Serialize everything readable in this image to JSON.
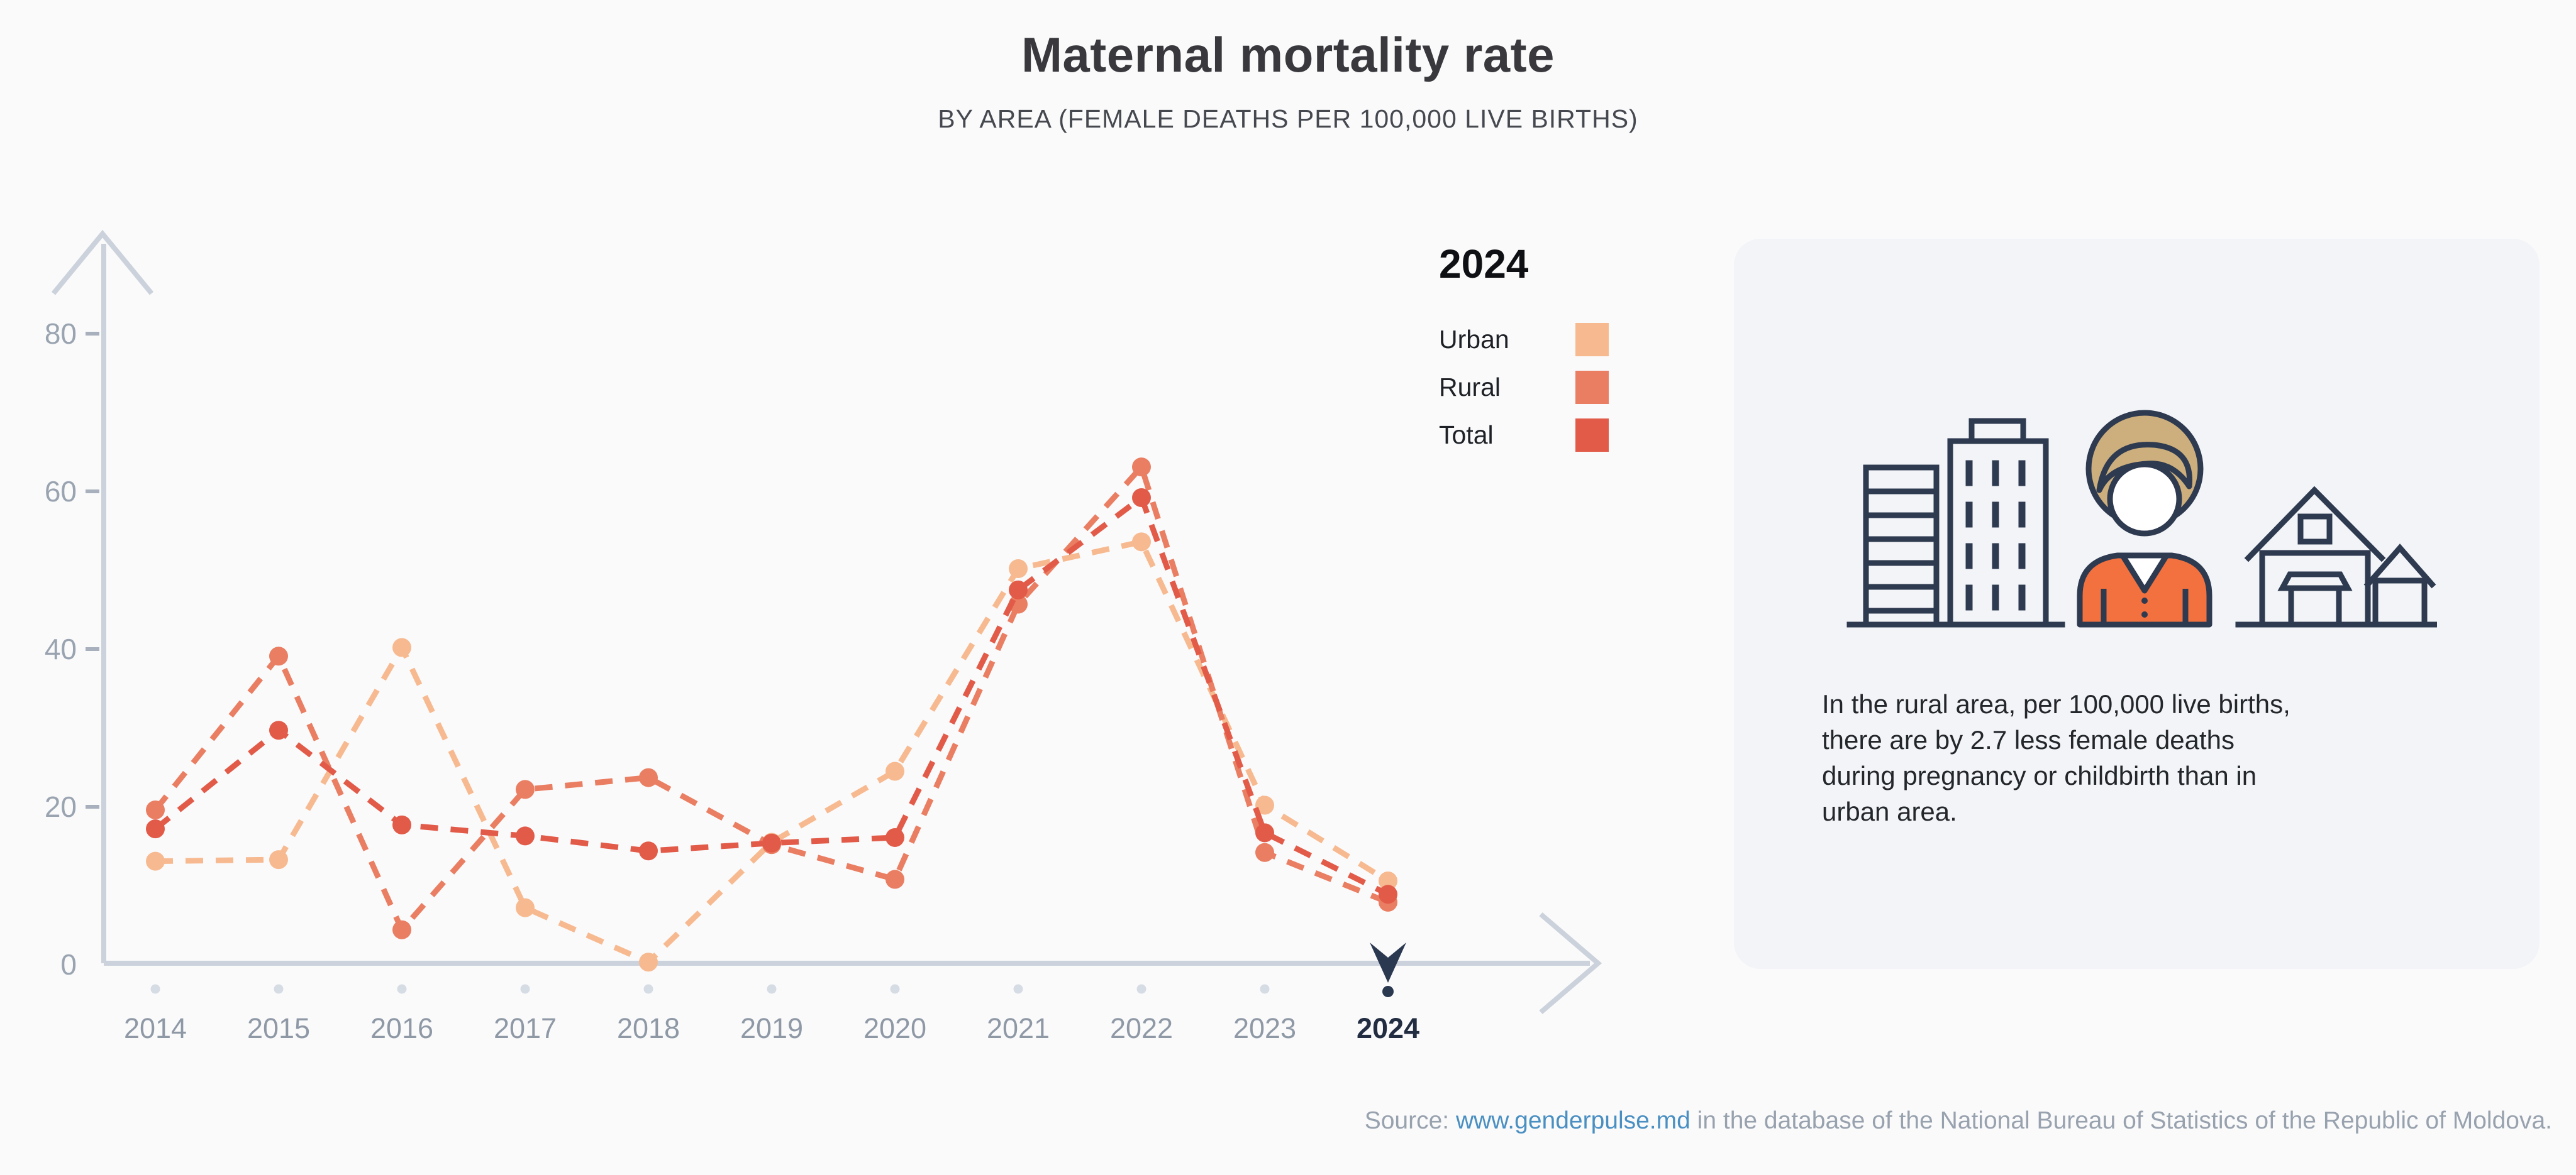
{
  "header": {
    "title": "Maternal mortality rate",
    "subtitle": "BY AREA (FEMALE DEATHS PER 100,000 LIVE BIRTHS)"
  },
  "legend": {
    "selected_year": "2024",
    "items": [
      {
        "label": "Urban",
        "color": "#f7ba90"
      },
      {
        "label": "Rural",
        "color": "#ea7e62"
      },
      {
        "label": "Total",
        "color": "#e25b49"
      }
    ]
  },
  "chart_data": {
    "type": "line",
    "title": "Maternal mortality rate by area (female deaths per 100,000 live births)",
    "x": [
      2014,
      2015,
      2016,
      2017,
      2018,
      2019,
      2020,
      2021,
      2022,
      2023,
      2024
    ],
    "series": [
      {
        "name": "Urban",
        "color": "#f7ba90",
        "values": [
          13.1,
          13.3,
          40.2,
          7.2,
          0.3,
          15.5,
          24.5,
          50.2,
          53.6,
          20.2,
          10.6
        ]
      },
      {
        "name": "Rural",
        "color": "#ea7e62",
        "values": [
          19.6,
          39.1,
          4.4,
          22.2,
          23.7,
          15.2,
          10.8,
          45.7,
          63.1,
          14.2,
          7.9
        ]
      },
      {
        "name": "Total",
        "color": "#e25b49",
        "values": [
          17.2,
          29.7,
          17.7,
          16.3,
          14.4,
          15.4,
          16.1,
          47.5,
          59.2,
          16.7,
          8.9
        ]
      }
    ],
    "yticks": [
      0,
      20,
      40,
      60,
      80
    ],
    "ylim": [
      0,
      88
    ],
    "xlabel": "",
    "ylabel": "",
    "grid": false,
    "line_style": "dashed",
    "legend_position": "top-right",
    "selected_x": 2024,
    "axis_color": "#cbd2db"
  },
  "infocard": {
    "icons": [
      "city-buildings-icon",
      "woman-icon",
      "rural-houses-icon"
    ],
    "lines": [
      "In the rural area, per 100,000 live births,",
      "there are by 2.7 less female deaths",
      "during pregnancy or childbirth than in",
      "urban area."
    ]
  },
  "footer": {
    "source_prefix": "Source: ",
    "source_link": "www.genderpulse.md",
    "source_suffix": " in the database of the National Bureau of Statistics of the Republic of Moldova."
  }
}
